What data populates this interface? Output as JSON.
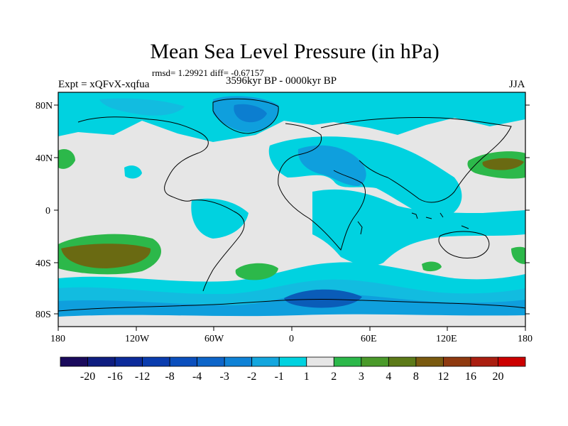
{
  "title": "Mean Sea Level Pressure (in hPa)",
  "stats": "rmsd= 1.29921  diff= -0.67157",
  "left_label": "Expt = xQFvX-xqfua",
  "center_label": "3596kyr BP - 0000kyr BP",
  "right_label": "JJA",
  "map": {
    "lat_labels": [
      "80N",
      "40N",
      "0",
      "40S",
      "80S"
    ],
    "lon_labels": [
      "180",
      "120W",
      "60W",
      "0",
      "60E",
      "120E",
      "180"
    ],
    "colors": {
      "neutral": "#e6e6e6",
      "neg1": "#00d2e0",
      "neg2": "#12bce0",
      "neg3": "#0f9fdd",
      "neg4": "#0c7ed0",
      "neg5": "#0a5cb8",
      "neg6": "#0c3f9c",
      "pos1": "#2cb84a",
      "pos2": "#5c8c20",
      "pos3": "#6a6a12"
    }
  },
  "colorbar": {
    "labels": [
      "-20",
      "-16",
      "-12",
      "-8",
      "-4",
      "-3",
      "-2",
      "-1",
      "1",
      "2",
      "3",
      "4",
      "8",
      "12",
      "16",
      "20"
    ],
    "colors": [
      "#1a0a5c",
      "#0f1d80",
      "#0c2b9a",
      "#0a3cae",
      "#0b4fbd",
      "#0d65c9",
      "#0f82d6",
      "#13a6de",
      "#00d2e0",
      "#e6e6e6",
      "#2cb84a",
      "#4a9a2a",
      "#5c7a18",
      "#7a5a10",
      "#8f3a10",
      "#aa1e10",
      "#cc0000"
    ]
  }
}
